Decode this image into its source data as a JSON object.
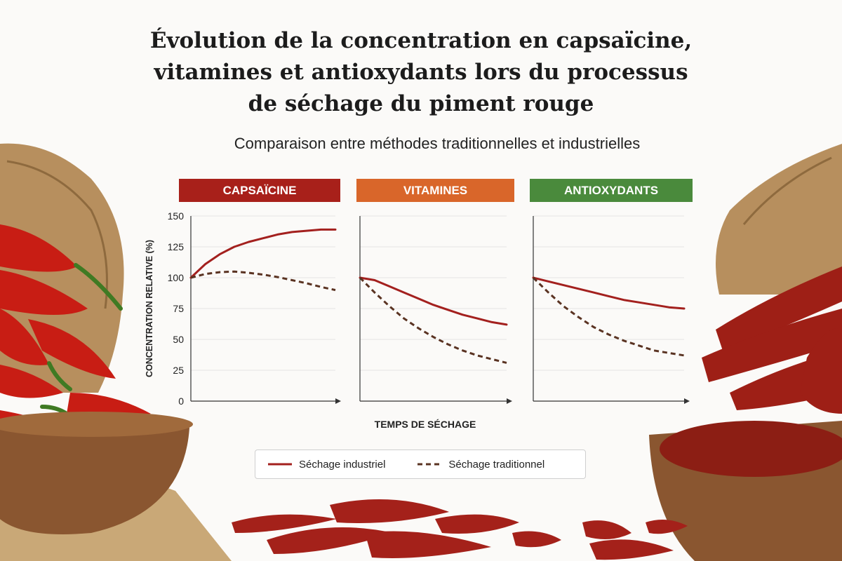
{
  "header": {
    "title_lines": [
      "Évolution de la concentration en capsaïcine,",
      "vitamines et antioxydants lors du processus",
      "de séchage du piment rouge"
    ],
    "subtitle": "Comparaison entre méthodes traditionnelles et industrielles"
  },
  "colors": {
    "capsaicine_header": "#a8201a",
    "vitamines_header": "#d9662a",
    "antioxydants_header": "#4a8a3c",
    "industrial_line": "#a3201e",
    "traditional_line": "#5a3322"
  },
  "legend": {
    "industrial_label": "Séchage industriel",
    "traditional_label": "Séchage traditionnel"
  },
  "chart_data": [
    {
      "type": "line",
      "title": "CAPSAÏCINE",
      "ylabel": "CONCENTRATION RELATIVE (%)",
      "xlabel": "TEMPS DE SÉCHAGE",
      "ylim": [
        0,
        150
      ],
      "yticks": [
        0,
        25,
        50,
        75,
        100,
        125,
        150
      ],
      "x": [
        0,
        1,
        2,
        3,
        4,
        5,
        6,
        7,
        8,
        9,
        10
      ],
      "series": [
        {
          "name": "Séchage industriel",
          "style": "solid",
          "values": [
            100,
            111,
            119,
            125,
            129,
            132,
            135,
            137,
            138,
            139,
            139
          ]
        },
        {
          "name": "Séchage traditionnel",
          "style": "dashed",
          "values": [
            100,
            103,
            104.5,
            105,
            104,
            102.5,
            100.5,
            98,
            95.5,
            92.5,
            90
          ]
        }
      ]
    },
    {
      "type": "line",
      "title": "VITAMINES",
      "ylim": [
        0,
        150
      ],
      "x": [
        0,
        1,
        2,
        3,
        4,
        5,
        6,
        7,
        8,
        9,
        10
      ],
      "series": [
        {
          "name": "Séchage industriel",
          "style": "solid",
          "values": [
            100,
            98,
            93,
            88,
            83,
            78,
            74,
            70,
            67,
            64,
            62
          ]
        },
        {
          "name": "Séchage traditionnel",
          "style": "dashed",
          "values": [
            100,
            88,
            77,
            67,
            59,
            52,
            46,
            41,
            37,
            34,
            31
          ]
        }
      ]
    },
    {
      "type": "line",
      "title": "ANTIOXYDANTS",
      "ylim": [
        0,
        150
      ],
      "x": [
        0,
        1,
        2,
        3,
        4,
        5,
        6,
        7,
        8,
        9,
        10
      ],
      "series": [
        {
          "name": "Séchage industriel",
          "style": "solid",
          "values": [
            100,
            97,
            94,
            91,
            88,
            85,
            82,
            80,
            78,
            76,
            75
          ]
        },
        {
          "name": "Séchage traditionnel",
          "style": "dashed",
          "values": [
            100,
            88,
            77,
            68,
            60,
            54,
            49,
            45,
            41,
            39,
            37
          ]
        }
      ]
    }
  ]
}
